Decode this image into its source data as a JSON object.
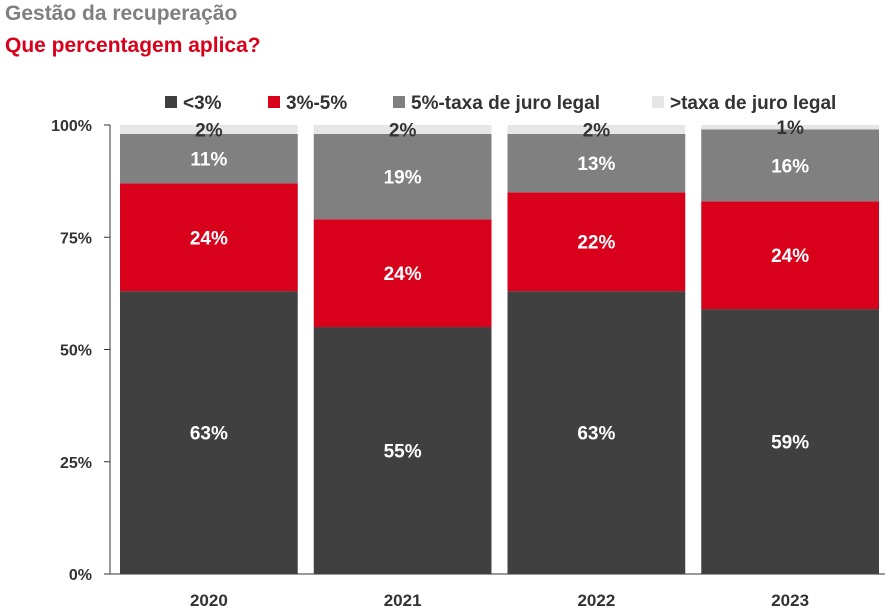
{
  "header": {
    "title": "Gestão da recuperação",
    "subtitle": "Que percentagem aplica?"
  },
  "chart_data": {
    "type": "bar",
    "stacked": true,
    "categories": [
      "2020",
      "2021",
      "2022",
      "2023"
    ],
    "series": [
      {
        "name": "<3%",
        "values": [
          63,
          55,
          63,
          59
        ],
        "color": "#404040",
        "label_color": "#ffffff"
      },
      {
        "name": "3%-5%",
        "values": [
          24,
          24,
          22,
          24
        ],
        "color": "#d9001b",
        "label_color": "#ffffff"
      },
      {
        "name": "5%-taxa de juro legal",
        "values": [
          11,
          19,
          13,
          16
        ],
        "color": "#808080",
        "label_color": "#ffffff"
      },
      {
        "name": ">taxa de juro legal",
        "values": [
          2,
          2,
          2,
          1
        ],
        "color": "#e6e6e6",
        "label_color": "#333333"
      }
    ],
    "data_labels": [
      [
        "63%",
        "55%",
        "63%",
        "59%"
      ],
      [
        "24%",
        "24%",
        "22%",
        "24%"
      ],
      [
        "11%",
        "19%",
        "13%",
        "16%"
      ],
      [
        "2%",
        "2%",
        "2%",
        "1%"
      ]
    ],
    "y_ticks": [
      "0%",
      "25%",
      "50%",
      "75%",
      "100%"
    ],
    "ylim": [
      0,
      100
    ],
    "grid": false,
    "legend_position": "top"
  }
}
